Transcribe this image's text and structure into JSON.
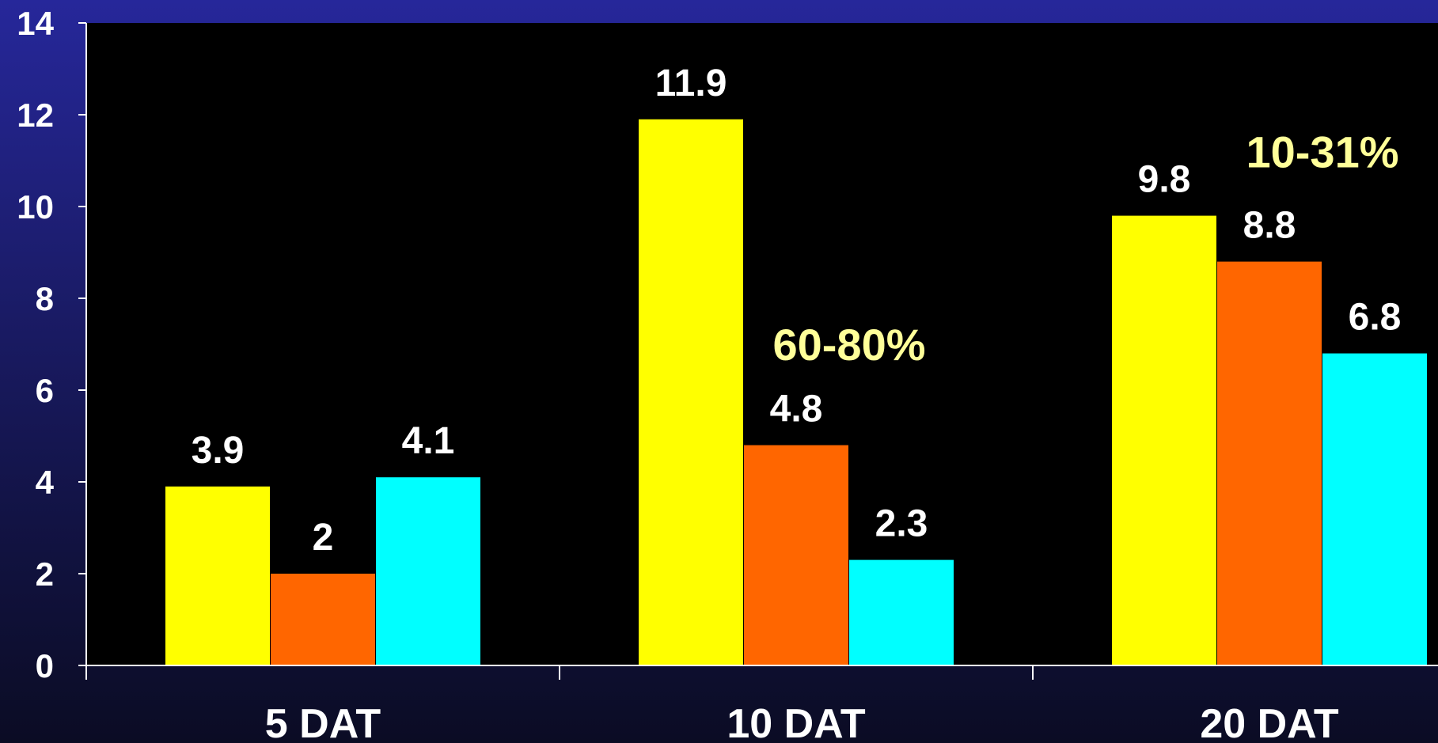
{
  "chart_data": {
    "type": "bar",
    "title": "",
    "xlabel": "",
    "ylabel": "",
    "categories": [
      "5 DAT",
      "10 DAT",
      "20 DAT"
    ],
    "series": [
      {
        "values": [
          3.9,
          11.9,
          9.8
        ],
        "color": "#ffff00"
      },
      {
        "values": [
          2,
          4.8,
          8.8
        ],
        "color": "#ff6600"
      },
      {
        "values": [
          4.1,
          2.3,
          6.8
        ],
        "color": "#00ffff"
      }
    ],
    "data_labels": [
      [
        "3.9",
        "11.9",
        "9.8"
      ],
      [
        "2",
        "4.8",
        "8.8"
      ],
      [
        "4.1",
        "2.3",
        "6.8"
      ]
    ],
    "ylim": [
      0,
      14
    ],
    "yticks": [
      0,
      2,
      4,
      6,
      8,
      10,
      12,
      14
    ],
    "ytick_labels": [
      "0",
      "2",
      "4",
      "6",
      "8",
      "10",
      "12",
      "14"
    ],
    "grid": false,
    "legend": "none",
    "annotations": [
      {
        "text": "60-80%",
        "category": "10 DAT",
        "y": 7.0
      },
      {
        "text": "10-31%",
        "category": "20 DAT",
        "y": 11.2
      }
    ],
    "colors": {
      "plot_background": "#000000",
      "axis": "#ffffff",
      "label_text": "#ffffff",
      "annotation_text": "#ffff99"
    }
  }
}
